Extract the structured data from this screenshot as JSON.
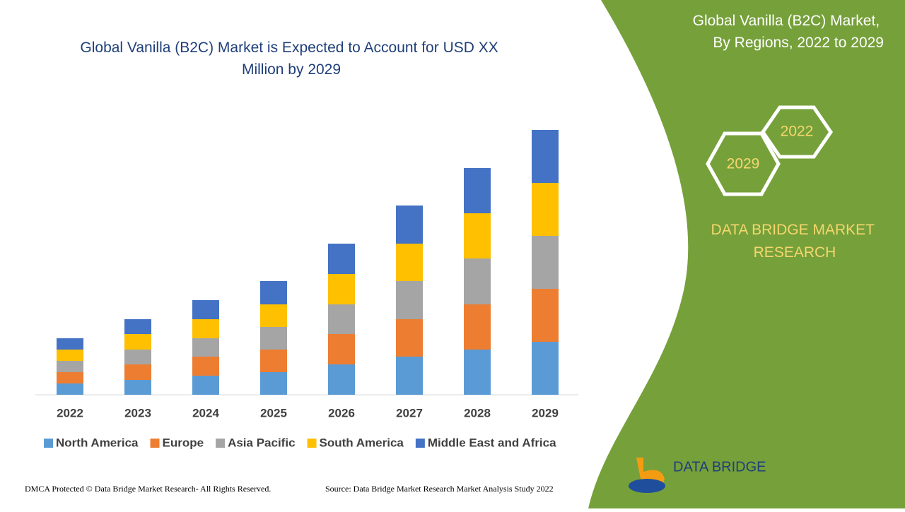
{
  "chart_data": {
    "type": "stacked-bar",
    "title": "Global Vanilla (B2C) Market is Expected to Account for USD XX Million by 2029",
    "categories": [
      "2022",
      "2023",
      "2024",
      "2025",
      "2026",
      "2027",
      "2028",
      "2029"
    ],
    "series": [
      {
        "name": "North America",
        "color": "#5b9bd5",
        "values": [
          16,
          21,
          27,
          32,
          43,
          54,
          64,
          75
        ]
      },
      {
        "name": "Europe",
        "color": "#ed7d31",
        "values": [
          16,
          22,
          27,
          32,
          43,
          53,
          64,
          75
        ]
      },
      {
        "name": "Asia Pacific",
        "color": "#a5a5a5",
        "values": [
          16,
          21,
          26,
          32,
          42,
          54,
          65,
          75
        ]
      },
      {
        "name": "South America",
        "color": "#ffc000",
        "values": [
          16,
          22,
          27,
          32,
          43,
          53,
          64,
          75
        ]
      },
      {
        "name": "Middle East and Africa",
        "color": "#4472c4",
        "values": [
          16,
          21,
          27,
          33,
          43,
          54,
          64,
          75
        ]
      }
    ]
  },
  "side_panel": {
    "title": "Global Vanilla (B2C) Market, By Regions, 2022 to 2029",
    "hex_start": "2022",
    "hex_end": "2029",
    "brand": "DATA BRIDGE MARKET RESEARCH"
  },
  "footer": {
    "copyright": "DMCA Protected © Data Bridge Market Research- All Rights Reserved.",
    "source": "Source: Data Bridge Market Research Market Analysis Study 2022",
    "logo": "DATA BRIDGE"
  }
}
